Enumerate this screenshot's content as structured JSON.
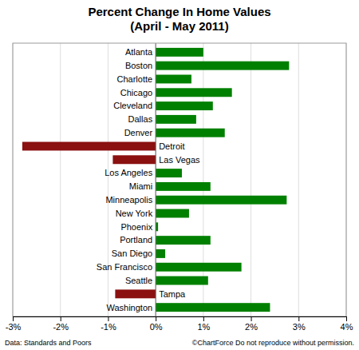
{
  "chart_data": {
    "type": "bar",
    "orientation": "horizontal",
    "title": "Percent Change In Home Values\n(April - May 2011)",
    "categories": [
      "Atlanta",
      "Boston",
      "Charlotte",
      "Chicago",
      "Cleveland",
      "Dallas",
      "Denver",
      "Detroit",
      "Las Vegas",
      "Los Angeles",
      "Miami",
      "Minneapolis",
      "New York",
      "Phoenix",
      "Portland",
      "San Diego",
      "San Francisco",
      "Seattle",
      "Tampa",
      "Washington"
    ],
    "values": [
      1.0,
      2.8,
      0.75,
      1.6,
      1.2,
      0.85,
      1.45,
      -2.8,
      -0.9,
      0.55,
      1.15,
      2.75,
      0.7,
      0.05,
      1.15,
      0.2,
      1.8,
      1.1,
      -0.85,
      2.4
    ],
    "colors": [
      "#008000",
      "#008000",
      "#008000",
      "#008000",
      "#008000",
      "#008000",
      "#008000",
      "#8B1010",
      "#8B1010",
      "#008000",
      "#008000",
      "#008000",
      "#008000",
      "#008000",
      "#008000",
      "#008000",
      "#008000",
      "#008000",
      "#8B1010",
      "#008000"
    ],
    "xlim": [
      -3,
      4
    ],
    "xticks": [
      {
        "value": -3,
        "label": "-3%"
      },
      {
        "value": -2,
        "label": "-2%"
      },
      {
        "value": -1,
        "label": "-1%"
      },
      {
        "value": 0,
        "label": "0%"
      },
      {
        "value": 1,
        "label": "1%"
      },
      {
        "value": 2,
        "label": "2%"
      },
      {
        "value": 3,
        "label": "3%"
      },
      {
        "value": 4,
        "label": "4%"
      }
    ],
    "grid": true,
    "annotations": [
      "Data: Standards and Poors",
      "©ChartForce  Do not reproduce without permission."
    ]
  }
}
